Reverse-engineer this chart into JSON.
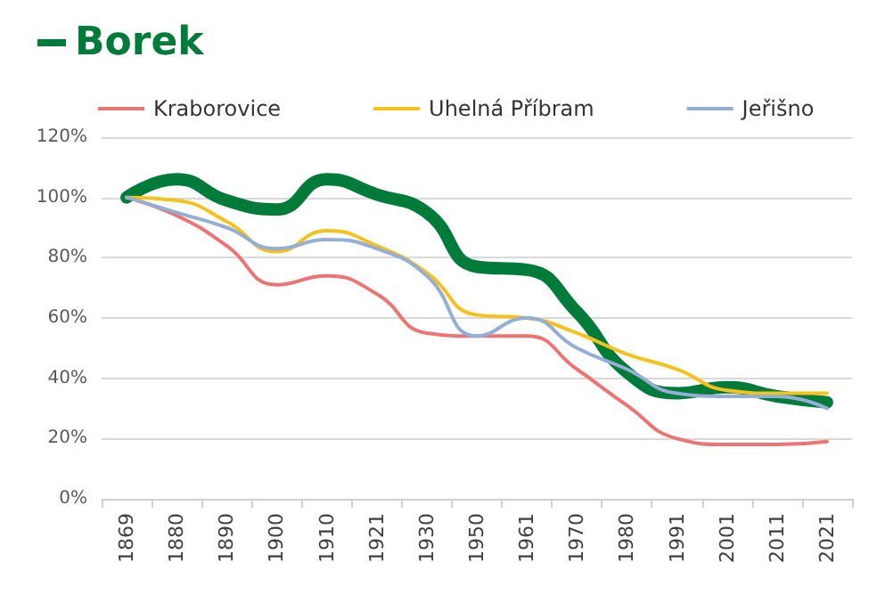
{
  "chart_data": {
    "type": "line",
    "categories": [
      "1869",
      "1880",
      "1890",
      "1900",
      "1910",
      "1921",
      "1930",
      "1950",
      "1961",
      "1970",
      "1980",
      "1991",
      "2001",
      "2011",
      "2021"
    ],
    "series": [
      {
        "name": "Borek",
        "color": "#007b3a",
        "values": [
          100,
          106,
          99,
          96,
          106,
          101,
          95,
          77,
          76,
          62,
          42,
          35,
          37,
          34,
          32
        ]
      },
      {
        "name": "Kraborovice",
        "color": "#ee7373",
        "values": [
          100,
          94,
          84,
          71,
          74,
          68,
          55,
          54,
          54,
          43,
          31,
          20,
          18,
          18,
          19
        ]
      },
      {
        "name": "Uhelná Příbram",
        "color": "#f5c21b",
        "values": [
          100,
          99,
          92,
          82,
          89,
          84,
          75,
          61,
          60,
          55,
          48,
          43,
          36,
          35,
          35
        ]
      },
      {
        "name": "Jeřišno",
        "color": "#94aed6",
        "values": [
          100,
          95,
          90,
          83,
          86,
          83,
          74,
          54,
          60,
          50,
          43,
          35,
          34,
          34,
          30
        ]
      }
    ],
    "ylim": [
      0,
      120
    ],
    "yticks": [
      {
        "value": 0,
        "label": "0%"
      },
      {
        "value": 20,
        "label": "20%"
      },
      {
        "value": 40,
        "label": "40%"
      },
      {
        "value": 60,
        "label": "60%"
      },
      {
        "value": 80,
        "label": "80%"
      },
      {
        "value": 100,
        "label": "100%"
      },
      {
        "value": 120,
        "label": "120%"
      }
    ],
    "grid": "y",
    "legend": "top",
    "marker": "none",
    "line_style": "solid"
  }
}
